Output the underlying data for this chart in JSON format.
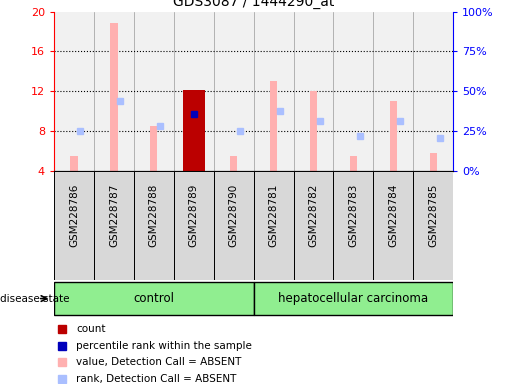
{
  "title": "GDS3087 / 1444290_at",
  "samples": [
    "GSM228786",
    "GSM228787",
    "GSM228788",
    "GSM228789",
    "GSM228790",
    "GSM228781",
    "GSM228782",
    "GSM228783",
    "GSM228784",
    "GSM228785"
  ],
  "groups": [
    "control",
    "control",
    "control",
    "control",
    "control",
    "hepatocellular carcinoma",
    "hepatocellular carcinoma",
    "hepatocellular carcinoma",
    "hepatocellular carcinoma",
    "hepatocellular carcinoma"
  ],
  "ylim_left": [
    4,
    20
  ],
  "ylim_right": [
    0,
    100
  ],
  "yticks_left": [
    4,
    8,
    12,
    16,
    20
  ],
  "yticks_right": [
    0,
    25,
    50,
    75,
    100
  ],
  "ytick_labels_right": [
    "0%",
    "25%",
    "50%",
    "75%",
    "100%"
  ],
  "value_absent": [
    5.5,
    18.8,
    8.5,
    12.1,
    5.5,
    13.0,
    12.0,
    5.5,
    11.0,
    5.8
  ],
  "rank_absent": [
    8.0,
    11.0,
    8.5,
    null,
    8.0,
    10.0,
    9.0,
    7.5,
    9.0,
    7.3
  ],
  "count_val": [
    null,
    null,
    null,
    12.1,
    null,
    null,
    null,
    null,
    null,
    null
  ],
  "percentile_rank_val": [
    null,
    null,
    null,
    9.7,
    null,
    null,
    null,
    null,
    null,
    null
  ],
  "thin_bar_width": 0.18,
  "wide_bar_width": 0.55,
  "color_value_absent": "#FFB0B0",
  "color_rank_absent": "#AABFFF",
  "color_count": "#BB0000",
  "color_percentile": "#0000BB",
  "color_green": "#90EE90",
  "color_gray_bg": "#D8D8D8",
  "legend_items": [
    {
      "label": "count",
      "color": "#BB0000"
    },
    {
      "label": "percentile rank within the sample",
      "color": "#0000BB"
    },
    {
      "label": "value, Detection Call = ABSENT",
      "color": "#FFB0B0"
    },
    {
      "label": "rank, Detection Call = ABSENT",
      "color": "#AABFFF"
    }
  ],
  "disease_state_label": "disease state"
}
